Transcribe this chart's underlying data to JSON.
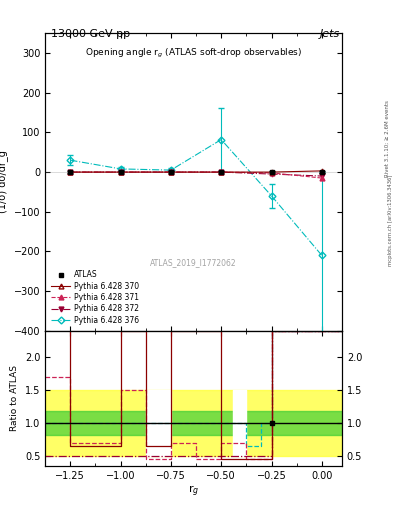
{
  "title_top": "13000 GeV pp",
  "title_right": "Jets",
  "plot_title": "Opening angle r$_g$ (ATLAS soft-drop observables)",
  "xlabel": "r$_g$",
  "ylabel_main": "(1/σ) dσ/dr_g",
  "ylabel_ratio": "Ratio to ATLAS",
  "watermark": "ATLAS_2019_I1772062",
  "right_label": "mcplots.cern.ch [arXiv:1306.3436]",
  "right_label2": "Rivet 3.1.10; ≥ 2.6M events",
  "x_data": [
    -1.25,
    -1.0,
    -0.75,
    -0.5,
    -0.25,
    0.0
  ],
  "atlas_y": [
    0.0,
    0.0,
    0.0,
    0.0,
    0.0,
    0.0
  ],
  "atlas_yerr": [
    2.0,
    1.5,
    1.5,
    2.0,
    2.0,
    3.5
  ],
  "py370_y": [
    0.0,
    0.0,
    0.0,
    0.0,
    0.0,
    3.0
  ],
  "py371_y": [
    0.0,
    0.0,
    0.0,
    0.0,
    -2.0,
    -15.0
  ],
  "py372_y": [
    0.0,
    0.0,
    0.0,
    0.0,
    -5.0,
    -10.0
  ],
  "py376_y": [
    30.0,
    8.0,
    5.0,
    82.0,
    -60.0,
    -210.0
  ],
  "py376_yerr": [
    12.0,
    5.0,
    5.0,
    80.0,
    30.0,
    210.0
  ],
  "green_band_lo": 0.82,
  "green_band_hi": 1.18,
  "yellow_band_lo": 0.5,
  "yellow_band_hi": 1.5,
  "ylim_main": [
    -400,
    350
  ],
  "ylim_ratio": [
    0.35,
    2.4
  ],
  "xlim": [
    -1.375,
    0.1
  ],
  "color_atlas": "#000000",
  "color_370": "#8B0000",
  "color_371": "#CC2255",
  "color_372": "#990033",
  "color_376": "#00BBBB",
  "bg_color": "#ffffff",
  "ratio_yticks": [
    0.5,
    1.0,
    1.5,
    2.0
  ]
}
